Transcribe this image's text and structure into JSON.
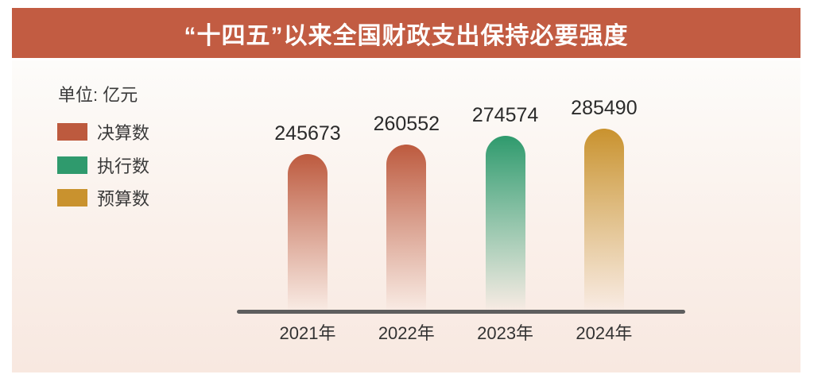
{
  "title": "“十四五”以来全国财政支出保持必要强度",
  "unit_label": "单位: 亿元",
  "legend": [
    {
      "label": "决算数",
      "color": "#bd5a3e"
    },
    {
      "label": "执行数",
      "color": "#2f9a6d"
    },
    {
      "label": "预算数",
      "color": "#c9922e"
    }
  ],
  "colors": {
    "banner": "#c25c42",
    "axis": "#5e5e5e",
    "panel_top": "#fdfcfa",
    "panel_bottom": "#f8e8e0"
  },
  "chart_data": {
    "type": "bar",
    "title": "“十四五”以来全国财政支出保持必要强度",
    "unit": "亿元",
    "categories": [
      "2021年",
      "2022年",
      "2023年",
      "2024年"
    ],
    "values": [
      245673,
      260552,
      274574,
      285490
    ],
    "point_series": [
      "决算数",
      "决算数",
      "执行数",
      "预算数"
    ],
    "point_colors": [
      "#bd5a3e",
      "#bd5a3e",
      "#2f9a6d",
      "#c9922e"
    ],
    "data_labels": true,
    "grid": false,
    "legend_position": "upper-left",
    "ylim": [
      0,
      285490
    ],
    "xlabel": "",
    "ylabel": "单位: 亿元"
  }
}
